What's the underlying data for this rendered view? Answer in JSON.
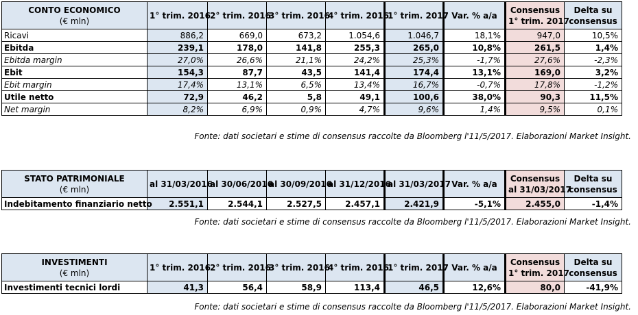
{
  "tables": [
    {
      "header": [
        "CONTO ECONOMICO",
        "(€ mln)"
      ],
      "columns": [
        "1° trim. 2016",
        "2° trim. 2016",
        "3° trim. 2016",
        "4° trim. 2016",
        "1° trim. 2017",
        "Var. % a/a",
        "Consensus\n1° trim. 2017",
        "Delta su\nconsensus"
      ],
      "rows": [
        {
          "label": "Ricavi",
          "style": "normal",
          "values": [
            "886,2",
            "669,0",
            "673,2",
            "1.054,6",
            "1.046,7",
            "18,1%",
            "947,0",
            "10,5%"
          ]
        },
        {
          "label": "Ebitda",
          "style": "bold",
          "values": [
            "239,1",
            "178,0",
            "141,8",
            "255,3",
            "265,0",
            "10,8%",
            "261,5",
            "1,4%"
          ]
        },
        {
          "label": "Ebitda margin",
          "style": "italic",
          "values": [
            "27,0%",
            "26,6%",
            "21,1%",
            "24,2%",
            "25,3%",
            "-1,7%",
            "27,6%",
            "-2,3%"
          ]
        },
        {
          "label": "Ebit",
          "style": "bold",
          "values": [
            "154,3",
            "87,7",
            "43,5",
            "141,4",
            "174,4",
            "13,1%",
            "169,0",
            "3,2%"
          ]
        },
        {
          "label": "Ebit margin",
          "style": "italic",
          "values": [
            "17,4%",
            "13,1%",
            "6,5%",
            "13,4%",
            "16,7%",
            "-0,7%",
            "17,8%",
            "-1,2%"
          ]
        },
        {
          "label": "Utile netto",
          "style": "bold",
          "values": [
            "72,9",
            "46,2",
            "5,8",
            "49,1",
            "100,6",
            "38,0%",
            "90,3",
            "11,5%"
          ]
        },
        {
          "label": "Net margin",
          "style": "italic",
          "values": [
            "8,2%",
            "6,9%",
            "0,9%",
            "4,7%",
            "9,6%",
            "1,4%",
            "9,5%",
            "0,1%"
          ]
        }
      ],
      "source": "Fonte: dati societari e stime di consensus raccolte da Bloomberg l'11/5/2017. Elaborazioni Market Insight."
    },
    {
      "header": [
        "STATO PATRIMONIALE",
        "(€ mln)"
      ],
      "columns": [
        "al 31/03/2016",
        "al 30/06/2016",
        "al 30/09/2016",
        "al 31/12/2016",
        "al 31/03/2017",
        "Var. % a/a",
        "Consensus\nal 31/03/2017",
        "Delta su\nconsensus"
      ],
      "rows": [
        {
          "label": "Indebitamento finanziario netto",
          "style": "bold",
          "values": [
            "2.551,1",
            "2.544,1",
            "2.527,5",
            "2.457,1",
            "2.421,9",
            "-5,1%",
            "2.455,0",
            "-1,4%"
          ]
        }
      ],
      "source": "Fonte: dati societari e stime di consensus raccolte da Bloomberg l'11/5/2017. Elaborazioni Market Insight."
    },
    {
      "header": [
        "INVESTIMENTI",
        "(€ mln)"
      ],
      "columns": [
        "1° trim. 2016",
        "2° trim. 2016",
        "3° trim. 2016",
        "4° trim. 2016",
        "1° trim. 2017",
        "Var. % a/a",
        "Consensus\n1° trim. 2017",
        "Delta su\nconsensus"
      ],
      "rows": [
        {
          "label": "Investimenti tecnici lordi",
          "style": "bold",
          "values": [
            "41,3",
            "56,4",
            "58,9",
            "113,4",
            "46,5",
            "12,6%",
            "80,0",
            "-41,9%"
          ]
        }
      ],
      "source": "Fonte: dati societari e stime di consensus raccolte da Bloomberg l'11/5/2017. Elaborazioni Market Insight."
    }
  ],
  "colors": {
    "header_blue": "#dce6f1",
    "consensus_pink": "#f2dcdb",
    "border": "#000000"
  }
}
